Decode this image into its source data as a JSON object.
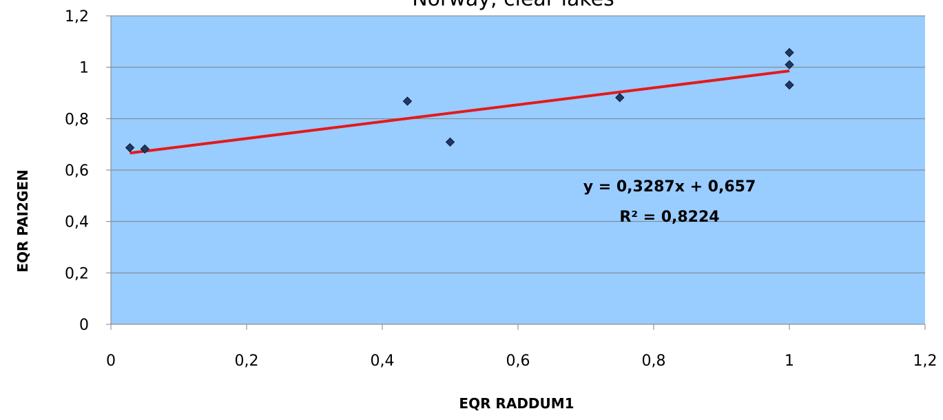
{
  "chart_data": {
    "type": "scatter",
    "title": "Norway, clear lakes",
    "xlabel": "EQR RADDUM1",
    "ylabel": "EQR PAI2GEN",
    "xlim": [
      0,
      1.2
    ],
    "ylim": [
      0,
      1.2
    ],
    "x_ticks": [
      "0",
      "0,2",
      "0,4",
      "0,6",
      "0,8",
      "1",
      "1,2"
    ],
    "y_ticks": [
      "0",
      "0,2",
      "0,4",
      "0,6",
      "0,8",
      "1",
      "1,2"
    ],
    "x_tick_values": [
      0,
      0.2,
      0.4,
      0.6,
      0.8,
      1,
      1.2
    ],
    "y_tick_values": [
      0,
      0.2,
      0.4,
      0.6,
      0.8,
      1,
      1.2
    ],
    "grid": true,
    "points": [
      {
        "x": 0.028,
        "y": 0.687
      },
      {
        "x": 0.05,
        "y": 0.682
      },
      {
        "x": 0.437,
        "y": 0.868
      },
      {
        "x": 0.5,
        "y": 0.709
      },
      {
        "x": 0.75,
        "y": 0.882
      },
      {
        "x": 1.0,
        "y": 1.057
      },
      {
        "x": 1.0,
        "y": 1.01
      },
      {
        "x": 1.0,
        "y": 0.931
      }
    ],
    "trendline": {
      "slope": 0.3287,
      "intercept": 0.657,
      "x_range": [
        0.028,
        1.0
      ]
    },
    "equation_text": "y = 0,3287x + 0,657",
    "r2_text": "R² = 0,8224",
    "colors": {
      "plot_background": "#99ccff",
      "marker": "#1f3864",
      "trendline": "#e31a1c",
      "gridline": "#808080"
    }
  }
}
